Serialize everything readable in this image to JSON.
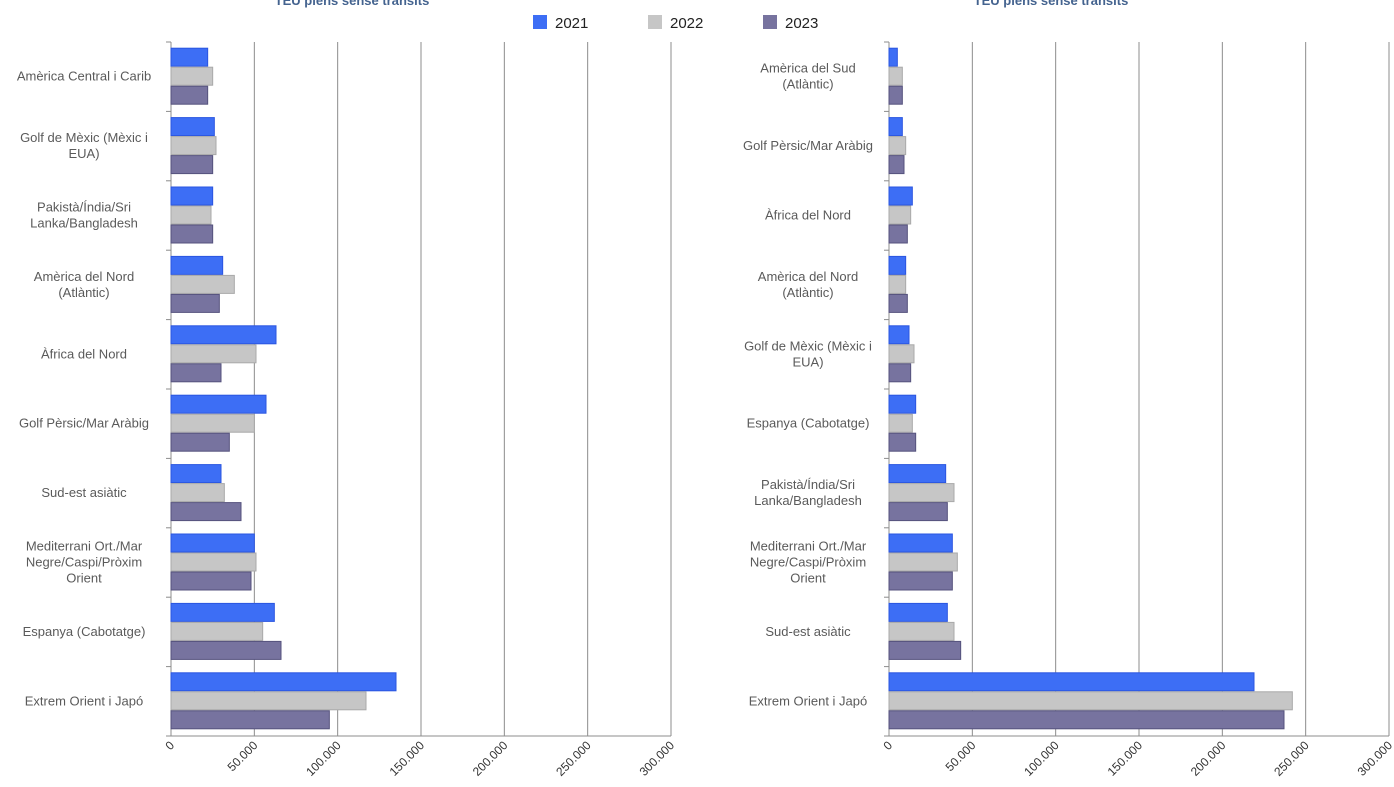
{
  "legend": [
    {
      "label": "2021",
      "color": "#3d6ef5"
    },
    {
      "label": "2022",
      "color": "#c6c6c6"
    },
    {
      "label": "2023",
      "color": "#77739f"
    }
  ],
  "chart_data": [
    {
      "type": "bar",
      "orientation": "horizontal",
      "title": "TEU plens sense trànsits",
      "xlim": [
        0,
        300000
      ],
      "tick_values": [
        0,
        50000,
        100000,
        150000,
        200000,
        250000,
        300000
      ],
      "tick_labels": [
        "0",
        "50.000",
        "100.000",
        "150.000",
        "200.000",
        "250.000",
        "300.000"
      ],
      "grid": true,
      "legend_position": "top-center",
      "categories": [
        [
          "Amèrica Central i Carib"
        ],
        [
          "Golf de Mèxic (Mèxic i",
          "EUA)"
        ],
        [
          "Pakistà/Índia/Sri",
          "Lanka/Bangladesh"
        ],
        [
          "Amèrica del Nord",
          "(Atlàntic)"
        ],
        [
          "Àfrica del Nord"
        ],
        [
          "Golf Pèrsic/Mar Aràbig"
        ],
        [
          "Sud-est asiàtic"
        ],
        [
          "Mediterrani Ort./Mar",
          "Negre/Caspi/Pròxim",
          "Orient"
        ],
        [
          "Espanya (Cabotatge)"
        ],
        [
          "Extrem Orient i Japó"
        ]
      ],
      "series": [
        {
          "name": "2021",
          "values": [
            22000,
            26000,
            25000,
            31000,
            63000,
            57000,
            30000,
            50000,
            62000,
            135000
          ]
        },
        {
          "name": "2022",
          "values": [
            25000,
            27000,
            24000,
            38000,
            51000,
            50000,
            32000,
            51000,
            55000,
            117000
          ]
        },
        {
          "name": "2023",
          "values": [
            22000,
            25000,
            25000,
            29000,
            30000,
            35000,
            42000,
            48000,
            66000,
            95000
          ]
        }
      ]
    },
    {
      "type": "bar",
      "orientation": "horizontal",
      "title": "TEU plens sense trànsits",
      "xlim": [
        0,
        300000
      ],
      "tick_values": [
        0,
        50000,
        100000,
        150000,
        200000,
        250000,
        300000
      ],
      "tick_labels": [
        "0",
        "50.000",
        "100.000",
        "150.000",
        "200.000",
        "250.000",
        "300.000"
      ],
      "grid": true,
      "legend_position": "top-center",
      "categories": [
        [
          "Amèrica del Sud",
          "(Atlàntic)"
        ],
        [
          "Golf Pèrsic/Mar Aràbig"
        ],
        [
          "Àfrica del Nord"
        ],
        [
          "Amèrica del Nord",
          "(Atlàntic)"
        ],
        [
          "Golf de Mèxic (Mèxic i",
          "EUA)"
        ],
        [
          "Espanya (Cabotatge)"
        ],
        [
          "Pakistà/Índia/Sri",
          "Lanka/Bangladesh"
        ],
        [
          "Mediterrani Ort./Mar",
          "Negre/Caspi/Pròxim",
          "Orient"
        ],
        [
          "Sud-est asiàtic"
        ],
        [
          "Extrem Orient i Japó"
        ]
      ],
      "series": [
        {
          "name": "2021",
          "values": [
            5000,
            8000,
            14000,
            10000,
            12000,
            16000,
            34000,
            38000,
            35000,
            219000
          ]
        },
        {
          "name": "2022",
          "values": [
            8000,
            10000,
            13000,
            10000,
            15000,
            14000,
            39000,
            41000,
            39000,
            242000
          ]
        },
        {
          "name": "2023",
          "values": [
            8000,
            9000,
            11000,
            11000,
            13000,
            16000,
            35000,
            38000,
            43000,
            237000
          ]
        }
      ]
    }
  ]
}
